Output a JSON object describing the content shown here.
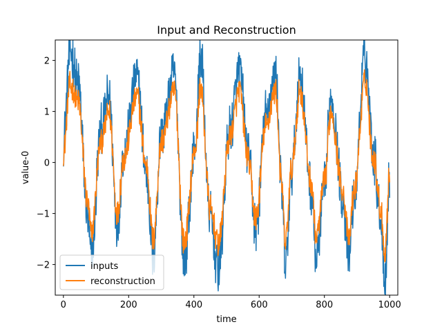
{
  "chart_data": {
    "type": "line",
    "title": "Input and Reconstruction",
    "xlabel": "time",
    "ylabel": "value-0",
    "xlim": [
      -25,
      1025
    ],
    "ylim": [
      -2.6,
      2.4
    ],
    "xticks": [
      0,
      200,
      400,
      600,
      800,
      1000
    ],
    "yticks": [
      -2,
      -1,
      0,
      1,
      2
    ],
    "ytick_labels": [
      "−2",
      "−1",
      "0",
      "1",
      "2"
    ],
    "legend_position": "lower-left",
    "grid": false,
    "x_range": [
      0,
      1000
    ],
    "num_points": 1000,
    "series": [
      {
        "name": "inputs",
        "color": "#1f77b4",
        "key_points": [
          [
            0,
            0.35
          ],
          [
            20,
            2.15
          ],
          [
            45,
            1.5
          ],
          [
            75,
            -1.1
          ],
          [
            85,
            -1.9
          ],
          [
            115,
            0.6
          ],
          [
            140,
            1.25
          ],
          [
            165,
            -1.2
          ],
          [
            185,
            0.2
          ],
          [
            225,
            1.65
          ],
          [
            255,
            -0.2
          ],
          [
            275,
            -1.85
          ],
          [
            300,
            0.55
          ],
          [
            340,
            1.7
          ],
          [
            370,
            -1.9
          ],
          [
            405,
            0.4
          ],
          [
            420,
            2.1
          ],
          [
            450,
            -1.1
          ],
          [
            475,
            -2.1
          ],
          [
            510,
            0.6
          ],
          [
            540,
            1.8
          ],
          [
            565,
            0.2
          ],
          [
            590,
            -1.3
          ],
          [
            620,
            0.9
          ],
          [
            650,
            1.75
          ],
          [
            670,
            -0.6
          ],
          [
            680,
            -2.1
          ],
          [
            700,
            -0.2
          ],
          [
            725,
            1.7
          ],
          [
            760,
            -0.5
          ],
          [
            775,
            -1.9
          ],
          [
            800,
            -0.5
          ],
          [
            820,
            1.3
          ],
          [
            855,
            -0.6
          ],
          [
            875,
            -1.9
          ],
          [
            890,
            -0.7
          ],
          [
            925,
            2.1
          ],
          [
            950,
            0.2
          ],
          [
            975,
            -1.2
          ],
          [
            985,
            -2.4
          ],
          [
            1000,
            -0.3
          ]
        ],
        "noise_amplitude": 0.45
      },
      {
        "name": "reconstruction",
        "color": "#ff7f0e",
        "key_points": [
          [
            0,
            0.2
          ],
          [
            20,
            1.5
          ],
          [
            45,
            1.2
          ],
          [
            75,
            -0.8
          ],
          [
            85,
            -1.4
          ],
          [
            115,
            0.4
          ],
          [
            140,
            1.0
          ],
          [
            165,
            -1.0
          ],
          [
            185,
            0.1
          ],
          [
            225,
            1.3
          ],
          [
            255,
            -0.1
          ],
          [
            275,
            -1.5
          ],
          [
            300,
            0.4
          ],
          [
            340,
            1.4
          ],
          [
            370,
            -1.6
          ],
          [
            405,
            0.3
          ],
          [
            420,
            1.5
          ],
          [
            450,
            -0.9
          ],
          [
            475,
            -1.6
          ],
          [
            510,
            0.5
          ],
          [
            540,
            1.4
          ],
          [
            565,
            0.1
          ],
          [
            590,
            -1.1
          ],
          [
            620,
            0.7
          ],
          [
            650,
            1.4
          ],
          [
            670,
            -0.5
          ],
          [
            680,
            -1.6
          ],
          [
            700,
            -0.1
          ],
          [
            725,
            1.4
          ],
          [
            760,
            -0.4
          ],
          [
            775,
            -1.5
          ],
          [
            800,
            -0.4
          ],
          [
            820,
            1.0
          ],
          [
            855,
            -0.5
          ],
          [
            875,
            -1.5
          ],
          [
            890,
            -0.6
          ],
          [
            925,
            1.6
          ],
          [
            950,
            0.1
          ],
          [
            975,
            -1.0
          ],
          [
            985,
            -1.8
          ],
          [
            1000,
            -0.2
          ]
        ],
        "noise_amplitude": 0.3
      }
    ]
  }
}
